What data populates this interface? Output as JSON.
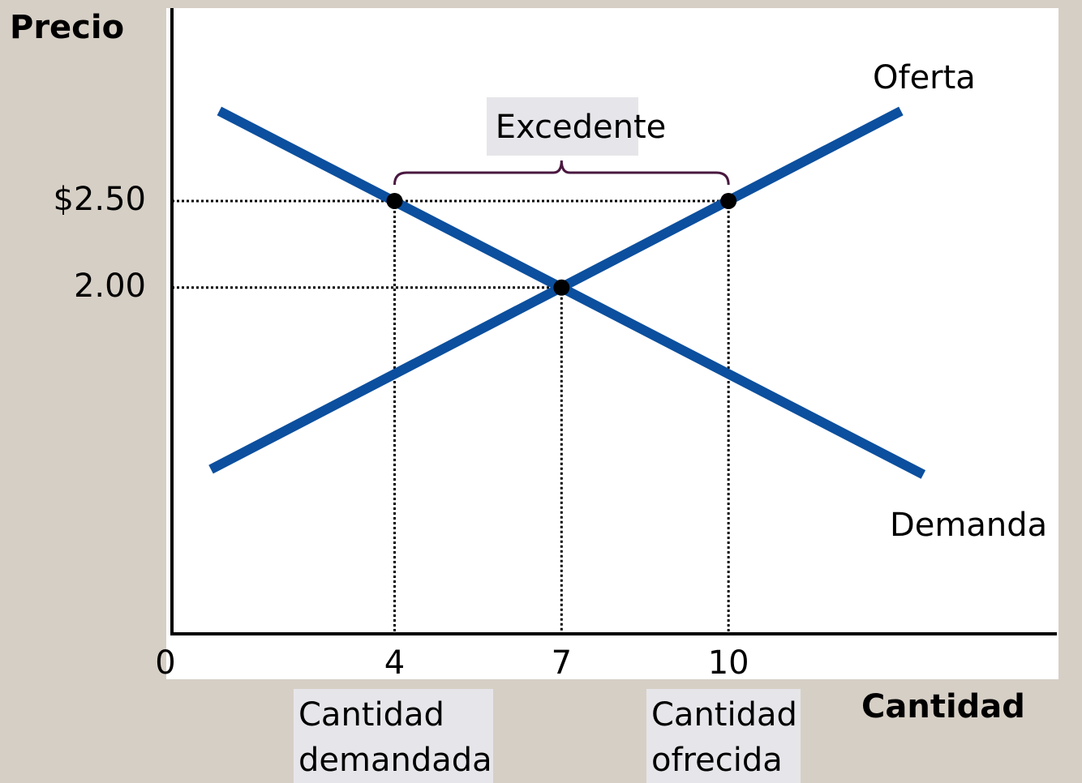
{
  "chart_data": {
    "type": "line",
    "y_label": "Precio",
    "x_label": "Cantidad",
    "xlim": [
      0,
      15.9
    ],
    "ylim": [
      0,
      3.6
    ],
    "xticks": [
      0,
      4,
      7,
      10
    ],
    "yticks": [
      {
        "value": 2,
        "label": "2.00"
      },
      {
        "value": 2.5,
        "label": "$2.50"
      }
    ],
    "series": [
      {
        "name": "Oferta",
        "color": "#0b4f9e",
        "x": [
          0.7,
          13.1
        ],
        "values": [
          0.95,
          3.02
        ]
      },
      {
        "name": "Demanda",
        "color": "#0b4f9e",
        "x": [
          0.85,
          13.5
        ],
        "values": [
          3.02,
          0.92
        ]
      }
    ],
    "points": {
      "x": [
        4,
        7,
        10
      ],
      "values": [
        2.5,
        2,
        2.5
      ]
    },
    "annotations": {
      "surplus": "Excedente",
      "quantity_demanded": [
        "Cantidad",
        "demandada"
      ],
      "quantity_supplied": [
        "Cantidad",
        "ofrecida"
      ]
    }
  }
}
